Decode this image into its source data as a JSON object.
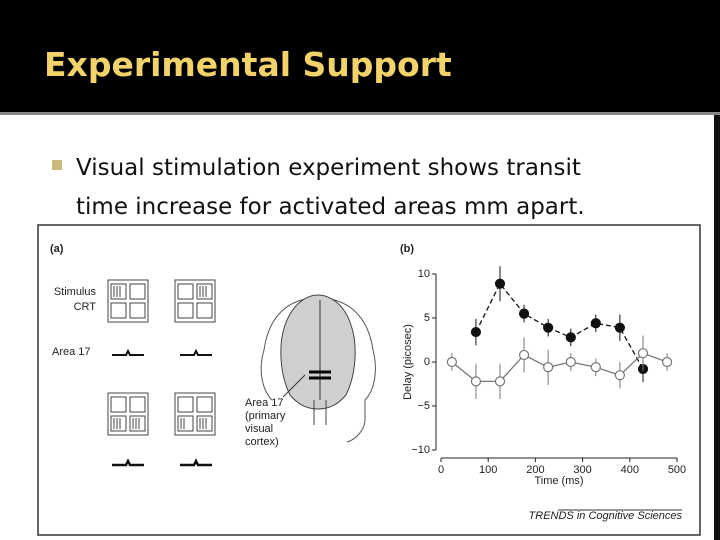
{
  "slide": {
    "title": "Experimental Support",
    "bullet_lines": [
      "Visual stimulation experiment shows transit",
      "time increase for activated areas mm apart."
    ]
  },
  "panel_a": {
    "label": "(a)",
    "stimulus_label": [
      "Stimulus",
      "CRT"
    ],
    "area_label": "Area 17",
    "cortex_label": [
      "Area 17",
      "(primary",
      "visual",
      "cortex)"
    ]
  },
  "chart_data": {
    "type": "line",
    "label": "(b)",
    "x_label": "Time (ms)",
    "y_label": "Delay (picosec)",
    "xlim": [
      0,
      500
    ],
    "xticks": [
      0,
      100,
      200,
      300,
      400,
      500
    ],
    "ylim": [
      -10,
      10
    ],
    "yticks": [
      {
        "value": -10,
        "label": "−10"
      },
      {
        "value": -5,
        "label": "−5"
      },
      0,
      5,
      10
    ],
    "series": [
      {
        "marker": "filled",
        "color": "#111111",
        "line_style": "dashed",
        "x": [
          74,
          125,
          176,
          227,
          275,
          328,
          379,
          428
        ],
        "values": [
          3.4,
          8.9,
          5.5,
          3.9,
          2.8,
          4.4,
          3.9,
          -0.8
        ],
        "errors": [
          1.5,
          2,
          1,
          1,
          1,
          1,
          1.5,
          1.5
        ]
      },
      {
        "marker": "open",
        "color": "#777777",
        "line_style": "solid",
        "x": [
          23,
          74,
          125,
          176,
          227,
          275,
          328,
          379,
          428,
          479
        ],
        "values": [
          0,
          -2.2,
          -2.2,
          0.8,
          -0.6,
          0,
          -0.6,
          -1.5,
          1.0,
          0
        ],
        "errors": [
          1,
          2,
          2,
          2,
          2,
          1,
          1,
          1.5,
          2,
          1
        ]
      }
    ]
  },
  "credit": "TRENDS in Cognitive Sciences"
}
